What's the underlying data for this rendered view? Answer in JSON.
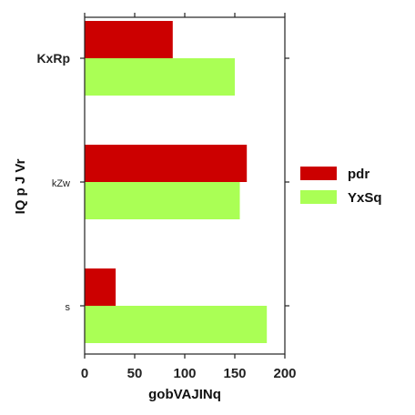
{
  "chart_data": {
    "type": "bar",
    "orientation": "horizontal",
    "categories": [
      "KxRp",
      "kZw",
      "s"
    ],
    "series": [
      {
        "name": "pdr",
        "values": [
          88,
          162,
          31
        ],
        "color": "#cc0000"
      },
      {
        "name": "YxSq",
        "values": [
          150,
          155,
          182
        ],
        "color": "#aaff55"
      }
    ],
    "xlabel": "gobVAJINq",
    "ylabel": "IQ p J Vr",
    "xlim": [
      0,
      200
    ],
    "xticks": [
      0,
      50,
      100,
      150,
      200
    ],
    "grid": false,
    "legend_position": "right"
  }
}
